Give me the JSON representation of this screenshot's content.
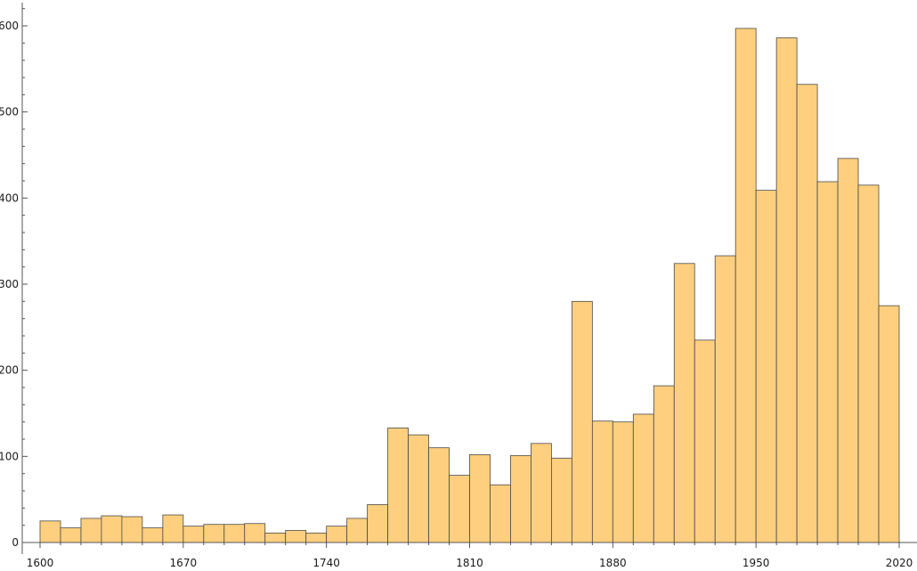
{
  "chart_data": {
    "type": "bar",
    "bin_width": 10,
    "bin_starts": [
      1600,
      1610,
      1620,
      1630,
      1640,
      1650,
      1660,
      1670,
      1680,
      1690,
      1700,
      1710,
      1720,
      1730,
      1740,
      1750,
      1760,
      1770,
      1780,
      1790,
      1800,
      1810,
      1820,
      1830,
      1840,
      1850,
      1860,
      1870,
      1880,
      1890,
      1900,
      1910,
      1920,
      1930,
      1940,
      1950,
      1960,
      1970,
      1980,
      1990,
      2000,
      2010
    ],
    "values": [
      25,
      17,
      28,
      31,
      30,
      17,
      32,
      19,
      21,
      21,
      22,
      11,
      14,
      11,
      19,
      28,
      44,
      133,
      125,
      110,
      78,
      102,
      67,
      101,
      115,
      98,
      280,
      141,
      140,
      149,
      182,
      324,
      235,
      333,
      597,
      409,
      586,
      532,
      419,
      446,
      415,
      275
    ],
    "xlim": [
      1600,
      2020
    ],
    "ylim": [
      0,
      600
    ],
    "xticks": [
      1600,
      1670,
      1740,
      1810,
      1880,
      1950,
      2020
    ],
    "yticks": [
      0,
      100,
      200,
      300,
      400,
      500,
      600
    ],
    "xtick_labels": [
      "1600",
      "1670",
      "1740",
      "1810",
      "1880",
      "1950",
      "2020"
    ],
    "ytick_labels": [
      "0",
      "100",
      "200",
      "300",
      "400",
      "500",
      "600"
    ],
    "title": "",
    "xlabel": "",
    "ylabel": "",
    "grid": false,
    "bar_color": "#fdcf7e",
    "edge_color": "#4a4a4a"
  }
}
